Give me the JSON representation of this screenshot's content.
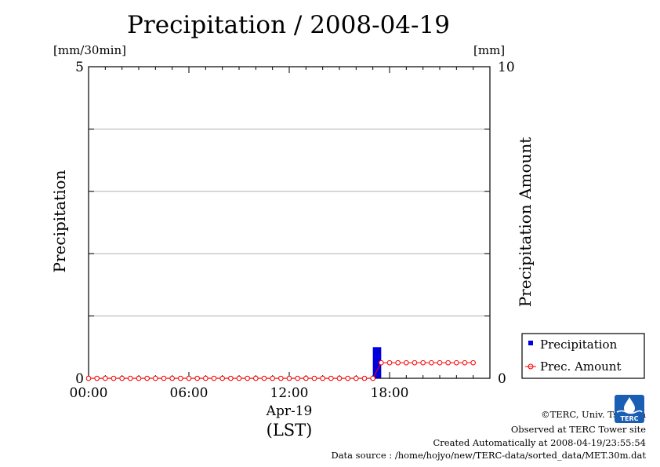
{
  "colors": {
    "precipitation": "#0000dd",
    "amount": "#ff0000",
    "grid": "#b0b0b0",
    "logo": "#1a5fb4"
  },
  "chart_data": {
    "type": "bar",
    "title": "Precipitation / 2008-04-19",
    "xlabel_date": "Apr-19",
    "xlabel_tz": "(LST)",
    "x_ticks": [
      "00:00",
      "06:00",
      "12:00",
      "18:00"
    ],
    "x_range_hours": [
      0,
      24
    ],
    "ylabel_left": "Precipitation",
    "ylabel_right": "Precipitation Amount",
    "y_unit_left": "[mm/30min]",
    "y_unit_right": "[mm]",
    "ylim_left": [
      0,
      5
    ],
    "ylim_right": [
      0,
      10
    ],
    "y_ticks_left": [
      "0",
      "5"
    ],
    "y_ticks_right": [
      "0",
      "10"
    ],
    "grid": true,
    "legend_position": "bottom-right",
    "series": [
      {
        "name": "Precipitation",
        "axis": "left",
        "kind": "bar",
        "points": [
          {
            "t": "17:00",
            "value": 0.5
          }
        ]
      },
      {
        "name": "Prec. Amount",
        "axis": "right",
        "kind": "line-marker",
        "x": [
          "00:00",
          "00:30",
          "01:00",
          "01:30",
          "02:00",
          "02:30",
          "03:00",
          "03:30",
          "04:00",
          "04:30",
          "05:00",
          "05:30",
          "06:00",
          "06:30",
          "07:00",
          "07:30",
          "08:00",
          "08:30",
          "09:00",
          "09:30",
          "10:00",
          "10:30",
          "11:00",
          "11:30",
          "12:00",
          "12:30",
          "13:00",
          "13:30",
          "14:00",
          "14:30",
          "15:00",
          "15:30",
          "16:00",
          "16:30",
          "17:00",
          "17:30",
          "18:00",
          "18:30",
          "19:00",
          "19:30",
          "20:00",
          "20:30",
          "21:00",
          "21:30",
          "22:00",
          "22:30",
          "23:00"
        ],
        "values": [
          0,
          0,
          0,
          0,
          0,
          0,
          0,
          0,
          0,
          0,
          0,
          0,
          0,
          0,
          0,
          0,
          0,
          0,
          0,
          0,
          0,
          0,
          0,
          0,
          0,
          0,
          0,
          0,
          0,
          0,
          0,
          0,
          0,
          0,
          0,
          0.5,
          0.5,
          0.5,
          0.5,
          0.5,
          0.5,
          0.5,
          0.5,
          0.5,
          0.5,
          0.5,
          0.5
        ]
      }
    ]
  },
  "credits": {
    "org": "©TERC, Univ. Tsukuba",
    "site": "Observed at TERC Tower site",
    "created": "Created Automatically at 2008-04-19/23:55:54",
    "source": "Data source : /home/hojyo/new/TERC-data/sorted_data/MET.30m.dat"
  },
  "logo": {
    "text": "TERC",
    "icon": "terc-water-drop-logo"
  }
}
